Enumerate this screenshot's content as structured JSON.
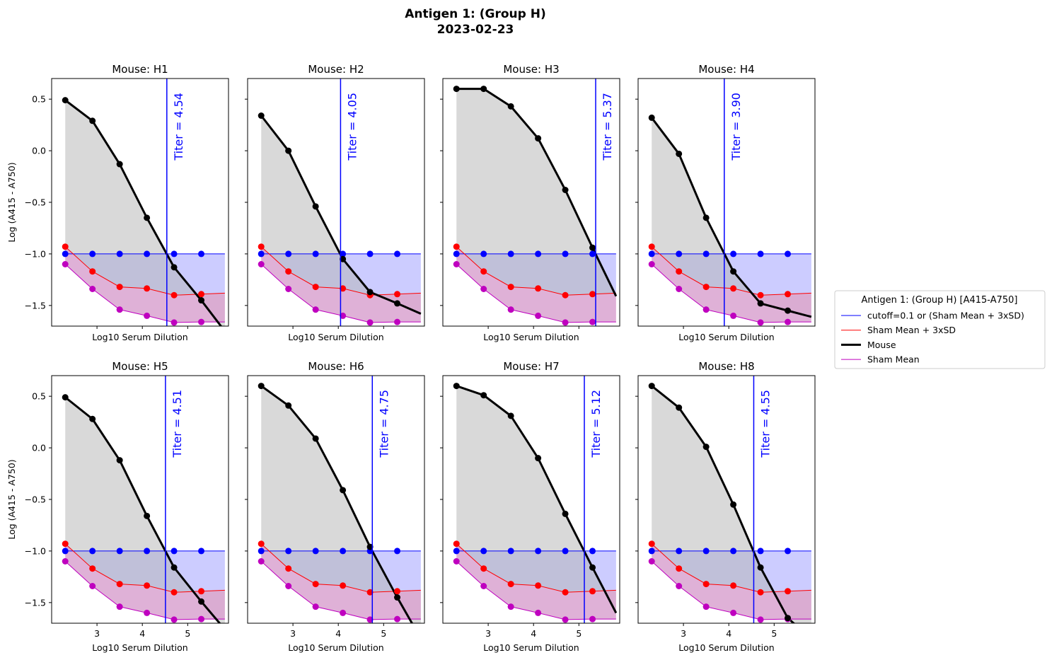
{
  "figure": {
    "title_line1": "Antigen 1: (Group H)",
    "title_line2": "2023-02-23"
  },
  "legend": {
    "title": "Antigen 1: (Group H) [A415-A750]",
    "entries": [
      {
        "label": "cutoff=0.1 or (Sham Mean + 3xSD)",
        "color": "#0000ff",
        "width": 1
      },
      {
        "label": "Sham Mean + 3xSD",
        "color": "#ff0000",
        "width": 1
      },
      {
        "label": "Mouse",
        "color": "#000000",
        "width": 3
      },
      {
        "label": "Sham Mean",
        "color": "#bf00bf",
        "width": 1
      }
    ]
  },
  "axes": {
    "xlabel": "Log10 Serum Dilution",
    "ylabel": "Log (A415 - A750)",
    "xlim": [
      2.0,
      5.9
    ],
    "ylim": [
      -1.7,
      0.7
    ],
    "xticks": [
      "3",
      "4",
      "5"
    ],
    "xtick_values": [
      3,
      4,
      5
    ],
    "yticks": [
      "0.5",
      "0.0",
      "−0.5",
      "−1.0",
      "−1.5"
    ],
    "ytick_values": [
      0.5,
      0.0,
      -0.5,
      -1.0,
      -1.5
    ]
  },
  "colors": {
    "cutoff": "#0000ff",
    "sham3sd": "#ff0000",
    "mouse": "#000000",
    "sham_mean": "#bf00bf",
    "mouse_fill": "#b3b3b3",
    "cutoff_fill": "#ccccff",
    "sham_fill": "#d9a3d0"
  },
  "chart_data": {
    "type": "line",
    "x": [
      2.3,
      2.9,
      3.5,
      4.1,
      4.7,
      5.3
    ],
    "x_extension": 5.82,
    "cutoff": [
      -1.0,
      -1.0,
      -1.0,
      -1.0,
      -1.0,
      -1.0
    ],
    "sham_mean_plus_3sd": [
      -0.93,
      -1.17,
      -1.32,
      -1.335,
      -1.4,
      -1.39
    ],
    "sham_mean": [
      -1.1,
      -1.34,
      -1.54,
      -1.6,
      -1.665,
      -1.66
    ],
    "sham_mean_plus_3sd_extension": -1.38,
    "sham_mean_extension": -1.66,
    "panels": [
      {
        "title": "Mouse: H1",
        "titer": 4.54,
        "titer_label": "Titer = 4.54",
        "mouse": [
          0.49,
          0.29,
          -0.13,
          -0.65,
          -1.13,
          -1.45
        ],
        "mouse_extension": -1.75
      },
      {
        "title": "Mouse: H2",
        "titer": 4.05,
        "titer_label": "Titer = 4.05",
        "mouse": [
          0.34,
          0.0,
          -0.54,
          -1.05,
          -1.37,
          -1.48
        ],
        "mouse_extension": -1.58
      },
      {
        "title": "Mouse: H3",
        "titer": 5.37,
        "titer_label": "Titer = 5.37",
        "mouse": [
          0.6,
          0.6,
          0.43,
          0.12,
          -0.38,
          -0.94
        ],
        "mouse_extension": -1.41
      },
      {
        "title": "Mouse: H4",
        "titer": 3.9,
        "titer_label": "Titer = 3.90",
        "mouse": [
          0.32,
          -0.03,
          -0.65,
          -1.17,
          -1.48,
          -1.55
        ],
        "mouse_extension": -1.61
      },
      {
        "title": "Mouse: H5",
        "titer": 4.51,
        "titer_label": "Titer = 4.51",
        "mouse": [
          0.49,
          0.28,
          -0.12,
          -0.66,
          -1.16,
          -1.49
        ],
        "mouse_extension": -1.76
      },
      {
        "title": "Mouse: H6",
        "titer": 4.75,
        "titer_label": "Titer = 4.75",
        "mouse": [
          0.6,
          0.41,
          0.09,
          -0.41,
          -0.96,
          -1.45
        ],
        "mouse_extension": -1.85
      },
      {
        "title": "Mouse: H7",
        "titer": 5.12,
        "titer_label": "Titer = 5.12",
        "mouse": [
          0.6,
          0.51,
          0.31,
          -0.1,
          -0.64,
          -1.16
        ],
        "mouse_extension": -1.6
      },
      {
        "title": "Mouse: H8",
        "titer": 4.55,
        "titer_label": "Titer = 4.55",
        "mouse": [
          0.6,
          0.39,
          0.01,
          -0.55,
          -1.16,
          -1.65
        ],
        "mouse_extension": -1.85
      }
    ]
  }
}
